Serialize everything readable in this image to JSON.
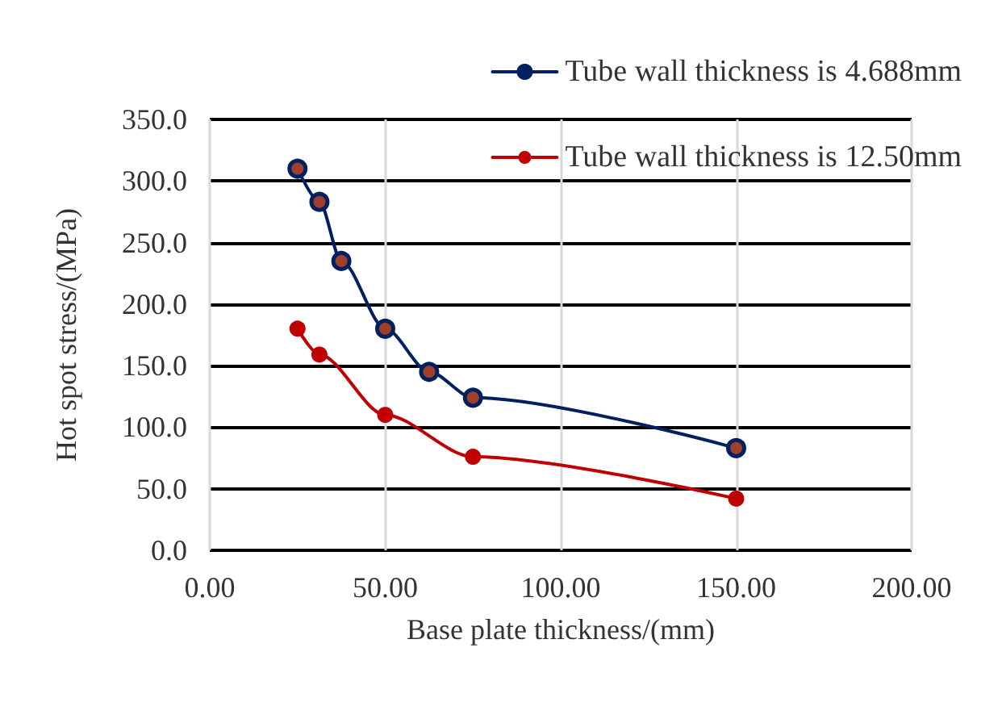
{
  "chart_data": {
    "type": "line",
    "xlabel": "Base plate thickness/(mm)",
    "ylabel": "Hot spot stress/(MPa)",
    "series": [
      {
        "name": "Tube wall thickness is 4.688mm",
        "color": "#002060",
        "x": [
          25,
          31.25,
          37.5,
          50,
          62.5,
          75,
          150
        ],
        "values": [
          310,
          283,
          235,
          180,
          145,
          124,
          83
        ]
      },
      {
        "name": "Tube wall thickness is 12.50mm",
        "color": "#c00000",
        "x": [
          25,
          31.25,
          50,
          75,
          150
        ],
        "values": [
          180,
          159,
          110,
          76,
          42
        ]
      }
    ],
    "xlim": [
      0,
      200
    ],
    "ylim": [
      0,
      350
    ],
    "xticks": [
      {
        "value": 0,
        "label": "0.00"
      },
      {
        "value": 50,
        "label": "50.00"
      },
      {
        "value": 100,
        "label": "100.00"
      },
      {
        "value": 150,
        "label": "150.00"
      },
      {
        "value": 200,
        "label": "200.00"
      }
    ],
    "yticks": [
      {
        "value": 0,
        "label": "0.0"
      },
      {
        "value": 50,
        "label": "50.0"
      },
      {
        "value": 100,
        "label": "100.0"
      },
      {
        "value": 150,
        "label": "150.0"
      },
      {
        "value": 200,
        "label": "200.0"
      },
      {
        "value": 250,
        "label": "250.0"
      },
      {
        "value": 300,
        "label": "300.0"
      },
      {
        "value": 350,
        "label": "350.0"
      }
    ],
    "grid": true,
    "legend": "top right",
    "marker": "circle",
    "line_style": "solid"
  }
}
